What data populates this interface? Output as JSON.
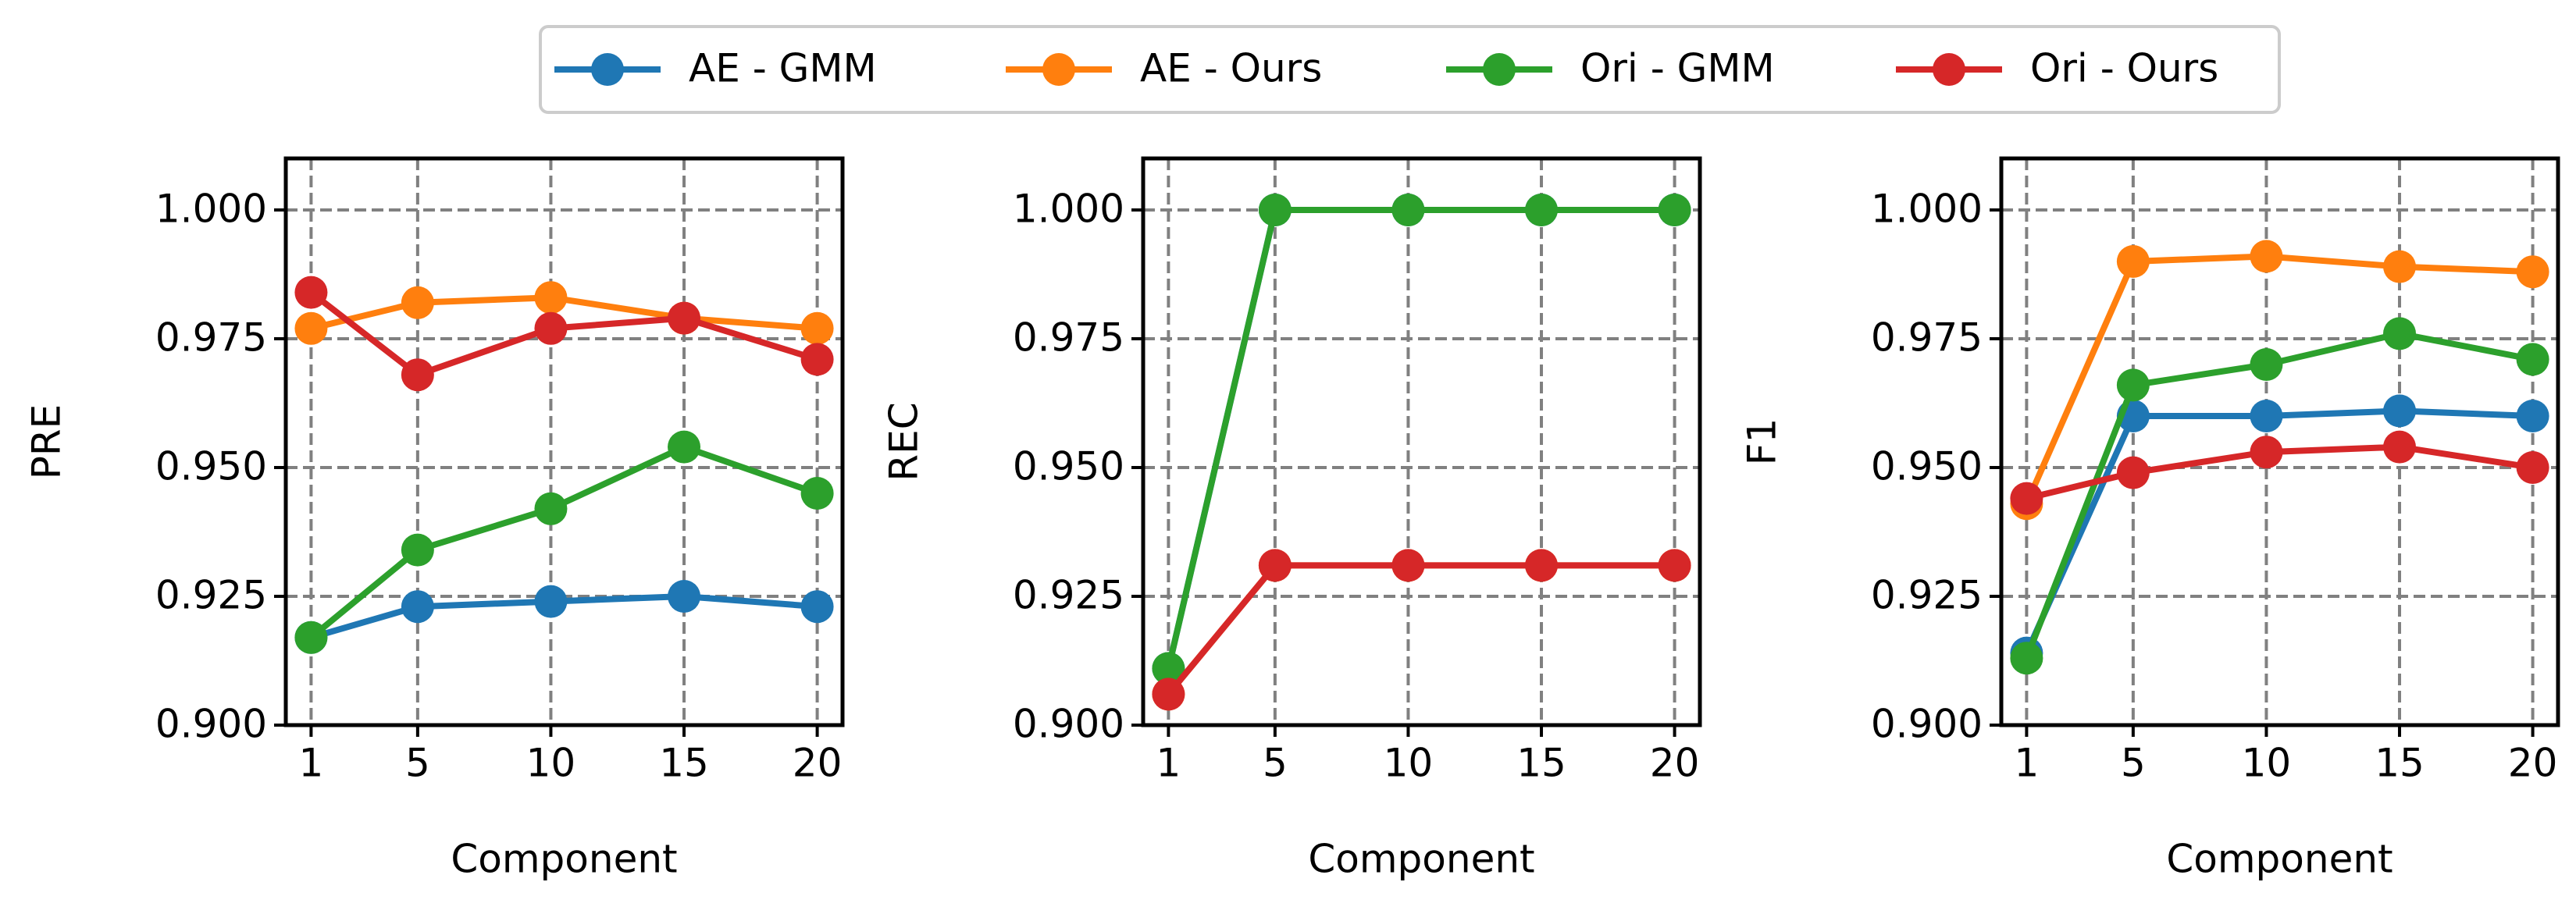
{
  "chart_data": [
    {
      "type": "line",
      "xlabel": "Component",
      "ylabel": "PRE",
      "x": [
        1,
        5,
        10,
        15,
        20
      ],
      "xlim": [
        0.05,
        20.95
      ],
      "xticks": [
        1,
        5,
        10,
        15,
        20
      ],
      "ylim": [
        0.9,
        1.01
      ],
      "yticks": [
        {
          "value": 0.9,
          "label": "0.900"
        },
        {
          "value": 0.925,
          "label": "0.925"
        },
        {
          "value": 0.95,
          "label": "0.950"
        },
        {
          "value": 0.975,
          "label": "0.975"
        },
        {
          "value": 1.0,
          "label": "1.000"
        }
      ],
      "grid": true,
      "series": [
        {
          "name": "AE - GMM",
          "color": "#1f77b4",
          "values": [
            0.917,
            0.923,
            0.924,
            0.925,
            0.923
          ]
        },
        {
          "name": "AE - Ours",
          "color": "#ff7f0e",
          "values": [
            0.977,
            0.982,
            0.983,
            0.979,
            0.977
          ]
        },
        {
          "name": "Ori - GMM",
          "color": "#2ca02c",
          "values": [
            0.917,
            0.934,
            0.942,
            0.954,
            0.945
          ]
        },
        {
          "name": "Ori - Ours",
          "color": "#d62728",
          "values": [
            0.984,
            0.968,
            0.977,
            0.979,
            0.971
          ]
        }
      ]
    },
    {
      "type": "line",
      "xlabel": "Component",
      "ylabel": "REC",
      "x": [
        1,
        5,
        10,
        15,
        20
      ],
      "xlim": [
        0.05,
        20.95
      ],
      "xticks": [
        1,
        5,
        10,
        15,
        20
      ],
      "ylim": [
        0.9,
        1.01
      ],
      "yticks": [
        {
          "value": 0.9,
          "label": "0.900"
        },
        {
          "value": 0.925,
          "label": "0.925"
        },
        {
          "value": 0.95,
          "label": "0.950"
        },
        {
          "value": 0.975,
          "label": "0.975"
        },
        {
          "value": 1.0,
          "label": "1.000"
        }
      ],
      "grid": true,
      "series": [
        {
          "color": "#1f77b4",
          "values": [
            0.911,
            1.0,
            1.0,
            1.0,
            1.0
          ]
        },
        {
          "color": "#ff7f0e",
          "values": [
            0.906,
            0.931,
            0.931,
            0.931,
            0.931
          ]
        },
        {
          "color": "#2ca02c",
          "values": [
            0.911,
            1.0,
            1.0,
            1.0,
            1.0
          ]
        },
        {
          "color": "#d62728",
          "values": [
            0.906,
            0.931,
            0.931,
            0.931,
            0.931
          ]
        }
      ]
    },
    {
      "type": "line",
      "xlabel": "Component",
      "ylabel": "F1",
      "x": [
        1,
        5,
        10,
        15,
        20
      ],
      "xlim": [
        0.05,
        20.95
      ],
      "xticks": [
        1,
        5,
        10,
        15,
        20
      ],
      "ylim": [
        0.9,
        1.01
      ],
      "yticks": [
        {
          "value": 0.9,
          "label": "0.900"
        },
        {
          "value": 0.925,
          "label": "0.925"
        },
        {
          "value": 0.95,
          "label": "0.950"
        },
        {
          "value": 0.975,
          "label": "0.975"
        },
        {
          "value": 1.0,
          "label": "1.000"
        }
      ],
      "grid": true,
      "series": [
        {
          "color": "#1f77b4",
          "values": [
            0.914,
            0.96,
            0.96,
            0.961,
            0.96
          ]
        },
        {
          "color": "#ff7f0e",
          "values": [
            0.943,
            0.99,
            0.991,
            0.989,
            0.988
          ]
        },
        {
          "color": "#2ca02c",
          "values": [
            0.913,
            0.966,
            0.97,
            0.976,
            0.971
          ]
        },
        {
          "color": "#d62728",
          "values": [
            0.944,
            0.949,
            0.953,
            0.954,
            0.95
          ]
        }
      ]
    }
  ]
}
